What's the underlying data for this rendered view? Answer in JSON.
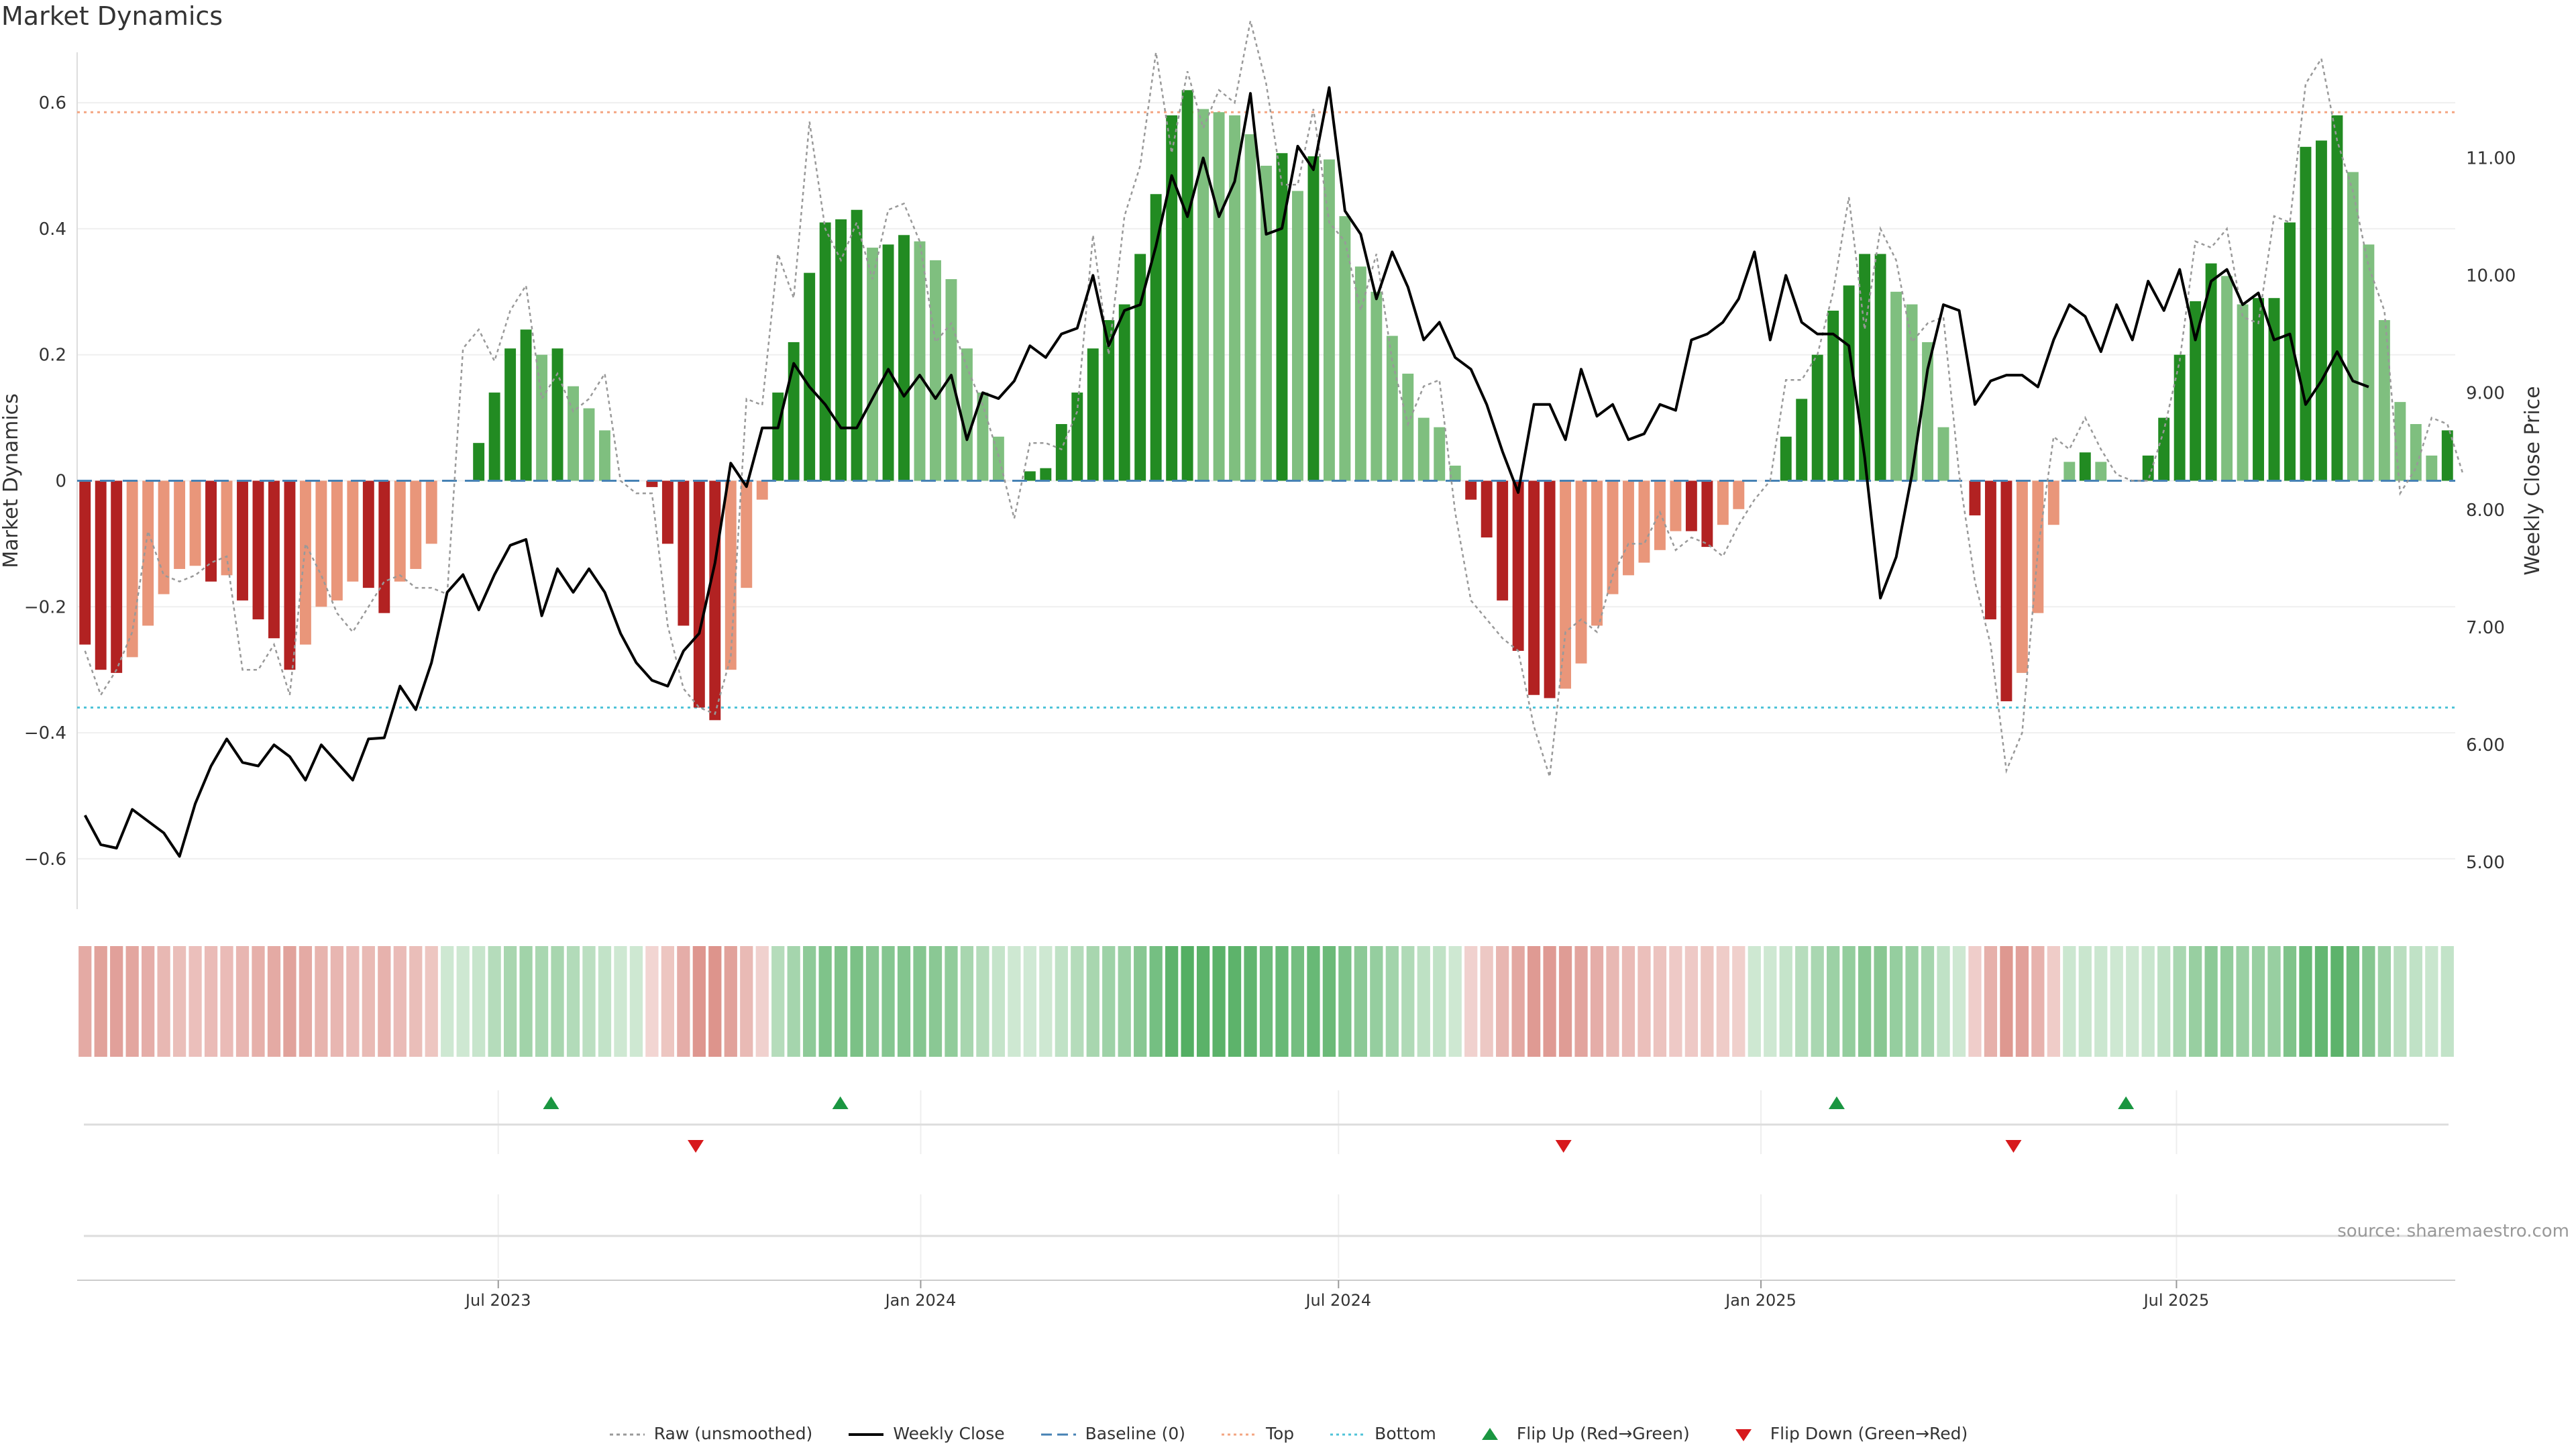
{
  "title": "Market Dynamics",
  "source": "source: sharemaestro.com",
  "colors": {
    "pos_strong": "#228b22",
    "pos_weak": "#7fbf7f",
    "neg_strong": "#b22222",
    "neg_weak": "#e9967a",
    "raw": "#999999",
    "close": "#000000",
    "baseline": "#4682b4",
    "top": "#f4a582",
    "bottom": "#4fc3d8",
    "flip_up": "#1a9641",
    "flip_down": "#d7191c"
  },
  "legend": [
    {
      "key": "raw",
      "label": "Raw (unsmoothed)"
    },
    {
      "key": "close",
      "label": "Weekly Close"
    },
    {
      "key": "baseline",
      "label": "Baseline (0)"
    },
    {
      "key": "top",
      "label": "Top"
    },
    {
      "key": "bottom",
      "label": "Bottom"
    },
    {
      "key": "flip_up",
      "label": "Flip Up (Red→Green)"
    },
    {
      "key": "flip_down",
      "label": "Flip Down (Green→Red)"
    }
  ],
  "chart_data": {
    "type": "bar",
    "title": "Market Dynamics",
    "ylabel": "Market Dynamics",
    "ylabel_right": "Weekly Close Price",
    "ylim": [
      -0.68,
      0.68
    ],
    "ylim_right": [
      4.6,
      11.9
    ],
    "yticks": [
      -0.6,
      -0.4,
      -0.2,
      0,
      0.2,
      0.4,
      0.6
    ],
    "ytick_labels": [
      "−0.6",
      "−0.4",
      "−0.2",
      "0",
      "0.2",
      "0.4",
      "0.6"
    ],
    "yticks_right": [
      5,
      6,
      7,
      8,
      9,
      10,
      11
    ],
    "ytick_labels_right": [
      "5.00",
      "6.00",
      "7.00",
      "8.00",
      "9.00",
      "10.00",
      "11.00"
    ],
    "x_start": "2023-01-02",
    "x_end": "2025-10-27",
    "xticks": [
      "2023-07-01",
      "2024-01-01",
      "2024-07-01",
      "2025-01-01",
      "2025-07-01"
    ],
    "xtick_labels": [
      "Jul 2023",
      "Jan 2024",
      "Jul 2024",
      "Jan 2025",
      "Jul 2025"
    ],
    "top_level": 0.585,
    "bottom_level": -0.36,
    "grid": true,
    "legend_position": "bottom-center",
    "series": [
      {
        "name": "Market Dynamics",
        "values": [
          -0.26,
          -0.3,
          -0.305,
          -0.28,
          -0.23,
          -0.18,
          -0.14,
          -0.135,
          -0.16,
          -0.15,
          -0.19,
          -0.22,
          -0.25,
          -0.3,
          -0.26,
          -0.2,
          -0.19,
          -0.16,
          -0.17,
          -0.21,
          -0.16,
          -0.14,
          -0.1,
          0.0,
          0.0,
          0.06,
          0.14,
          0.21,
          0.24,
          0.2,
          0.21,
          0.15,
          0.115,
          0.08,
          0.0,
          0.0,
          -0.01,
          -0.1,
          -0.23,
          -0.36,
          -0.38,
          -0.3,
          -0.17,
          -0.03,
          0.14,
          0.22,
          0.33,
          0.41,
          0.415,
          0.43,
          0.37,
          0.375,
          0.39,
          0.38,
          0.35,
          0.32,
          0.21,
          0.14,
          0.07,
          0.0,
          0.015,
          0.02,
          0.09,
          0.14,
          0.21,
          0.255,
          0.28,
          0.36,
          0.455,
          0.58,
          0.62,
          0.59,
          0.585,
          0.58,
          0.55,
          0.5,
          0.52,
          0.46,
          0.515,
          0.51,
          0.42,
          0.34,
          0.3,
          0.23,
          0.17,
          0.1,
          0.085,
          0.024,
          -0.03,
          -0.09,
          -0.19,
          -0.27,
          -0.34,
          -0.345,
          -0.33,
          -0.29,
          -0.23,
          -0.18,
          -0.15,
          -0.13,
          -0.11,
          -0.08,
          -0.08,
          -0.105,
          -0.07,
          -0.045,
          0.0,
          0.0,
          0.07,
          0.13,
          0.2,
          0.27,
          0.31,
          0.36,
          0.36,
          0.3,
          0.28,
          0.22,
          0.085,
          0.0,
          -0.055,
          -0.22,
          -0.35,
          -0.305,
          -0.21,
          -0.07,
          0.03,
          0.045,
          0.03,
          0.0,
          0.0,
          0.04,
          0.1,
          0.2,
          0.285,
          0.345,
          0.325,
          0.28,
          0.29,
          0.29,
          0.41,
          0.53,
          0.54,
          0.58,
          0.49,
          0.375,
          0.255,
          0.125,
          0.09,
          0.04,
          0.08
        ]
      },
      {
        "name": "Raw (unsmoothed)",
        "values": [
          -0.27,
          -0.34,
          -0.3,
          -0.24,
          -0.08,
          -0.15,
          -0.16,
          -0.15,
          -0.13,
          -0.12,
          -0.3,
          -0.3,
          -0.26,
          -0.34,
          -0.1,
          -0.15,
          -0.21,
          -0.24,
          -0.2,
          -0.16,
          -0.15,
          -0.17,
          -0.17,
          -0.18,
          0.21,
          0.24,
          0.19,
          0.27,
          0.31,
          0.13,
          0.17,
          0.11,
          0.13,
          0.17,
          0.0,
          -0.02,
          -0.02,
          -0.23,
          -0.33,
          -0.36,
          -0.37,
          -0.28,
          0.13,
          0.12,
          0.36,
          0.29,
          0.57,
          0.4,
          0.35,
          0.41,
          0.32,
          0.43,
          0.44,
          0.38,
          0.22,
          0.25,
          0.18,
          0.12,
          0.04,
          -0.06,
          0.06,
          0.06,
          0.05,
          0.11,
          0.39,
          0.2,
          0.42,
          0.5,
          0.68,
          0.52,
          0.65,
          0.56,
          0.62,
          0.6,
          0.73,
          0.63,
          0.47,
          0.47,
          0.59,
          0.41,
          0.38,
          0.27,
          0.36,
          0.19,
          0.09,
          0.15,
          0.16,
          -0.05,
          -0.19,
          -0.22,
          -0.25,
          -0.27,
          -0.39,
          -0.47,
          -0.24,
          -0.22,
          -0.24,
          -0.15,
          -0.1,
          -0.1,
          -0.05,
          -0.11,
          -0.09,
          -0.1,
          -0.12,
          -0.07,
          -0.03,
          0.0,
          0.16,
          0.16,
          0.2,
          0.3,
          0.45,
          0.24,
          0.4,
          0.35,
          0.22,
          0.25,
          0.26,
          0.01,
          -0.16,
          -0.26,
          -0.46,
          -0.4,
          -0.11,
          0.07,
          0.05,
          0.1,
          0.05,
          0.01,
          0.0,
          0.0,
          0.08,
          0.19,
          0.38,
          0.37,
          0.4,
          0.26,
          0.25,
          0.42,
          0.41,
          0.63,
          0.67,
          0.54,
          0.46,
          0.34,
          0.27,
          -0.02,
          0.02,
          0.1,
          0.09,
          0.01
        ]
      },
      {
        "name": "Weekly Close",
        "values": [
          5.4,
          5.15,
          5.12,
          5.45,
          5.35,
          5.25,
          5.05,
          5.5,
          5.82,
          6.05,
          5.85,
          5.82,
          6.0,
          5.9,
          5.7,
          6.0,
          5.85,
          5.7,
          6.05,
          6.06,
          6.5,
          6.3,
          6.7,
          7.3,
          7.45,
          7.15,
          7.45,
          7.7,
          7.75,
          7.1,
          7.5,
          7.3,
          7.5,
          7.3,
          6.95,
          6.7,
          6.55,
          6.5,
          6.8,
          6.95,
          7.55,
          8.4,
          8.2,
          8.7,
          8.7,
          9.25,
          9.05,
          8.9,
          8.7,
          8.7,
          8.95,
          9.2,
          8.97,
          9.15,
          8.95,
          9.15,
          8.6,
          9.0,
          8.95,
          9.1,
          9.4,
          9.3,
          9.5,
          9.55,
          10.0,
          9.4,
          9.7,
          9.75,
          10.25,
          10.85,
          10.5,
          11.0,
          10.5,
          10.8,
          11.55,
          10.35,
          10.4,
          11.1,
          10.9,
          11.6,
          10.55,
          10.35,
          9.8,
          10.2,
          9.9,
          9.45,
          9.6,
          9.3,
          9.2,
          8.9,
          8.5,
          8.15,
          8.9,
          8.9,
          8.6,
          9.2,
          8.8,
          8.9,
          8.6,
          8.65,
          8.9,
          8.85,
          9.45,
          9.5,
          9.6,
          9.8,
          10.2,
          9.45,
          10.0,
          9.6,
          9.5,
          9.5,
          9.4,
          8.45,
          7.25,
          7.6,
          8.3,
          9.2,
          9.75,
          9.7,
          8.9,
          9.1,
          9.15,
          9.15,
          9.05,
          9.45,
          9.75,
          9.65,
          9.35,
          9.75,
          9.45,
          9.95,
          9.7,
          10.05,
          9.45,
          9.95,
          10.05,
          9.75,
          9.85,
          9.45,
          9.5,
          8.9,
          9.1,
          9.35,
          9.1,
          9.05
        ]
      }
    ],
    "state_strip_values": [
      -0.26,
      -0.3,
      -0.305,
      -0.28,
      -0.23,
      -0.18,
      -0.14,
      -0.135,
      -0.16,
      -0.15,
      -0.19,
      -0.22,
      -0.25,
      -0.3,
      -0.26,
      -0.2,
      -0.19,
      -0.16,
      -0.17,
      -0.21,
      -0.16,
      -0.14,
      -0.1,
      0.0,
      0.0,
      0.06,
      0.14,
      0.21,
      0.24,
      0.2,
      0.21,
      0.15,
      0.115,
      0.08,
      0.0,
      0.0,
      -0.01,
      -0.1,
      -0.23,
      -0.36,
      -0.38,
      -0.3,
      -0.17,
      -0.03,
      0.14,
      0.22,
      0.33,
      0.41,
      0.415,
      0.43,
      0.37,
      0.375,
      0.39,
      0.38,
      0.35,
      0.32,
      0.21,
      0.14,
      0.07,
      0.0,
      0.015,
      0.02,
      0.09,
      0.14,
      0.21,
      0.255,
      0.28,
      0.36,
      0.455,
      0.58,
      0.62,
      0.59,
      0.585,
      0.58,
      0.55,
      0.5,
      0.52,
      0.46,
      0.515,
      0.51,
      0.42,
      0.34,
      0.3,
      0.23,
      0.17,
      0.1,
      0.085,
      0.024,
      -0.03,
      -0.09,
      -0.19,
      -0.27,
      -0.34,
      -0.345,
      -0.33,
      -0.29,
      -0.23,
      -0.18,
      -0.15,
      -0.13,
      -0.11,
      -0.08,
      -0.08,
      -0.105,
      -0.07,
      -0.045,
      0.0,
      0.0,
      0.07,
      0.13,
      0.2,
      0.27,
      0.31,
      0.36,
      0.36,
      0.3,
      0.28,
      0.22,
      0.085,
      0.0,
      -0.055,
      -0.22,
      -0.35,
      -0.305,
      -0.21,
      -0.07,
      0.03,
      0.045,
      0.03,
      0.0,
      0.0,
      0.04,
      0.1,
      0.2,
      0.285,
      0.345,
      0.325,
      0.28,
      0.29,
      0.29,
      0.41,
      0.53,
      0.54,
      0.58,
      0.49,
      0.375,
      0.255,
      0.125,
      0.09,
      0.04,
      0.08
    ],
    "flip_up_dates": [
      "2023-07-24",
      "2023-11-27",
      "2025-02-03",
      "2025-06-09"
    ],
    "flip_down_dates": [
      "2023-09-25",
      "2024-10-07",
      "2025-04-21"
    ]
  }
}
